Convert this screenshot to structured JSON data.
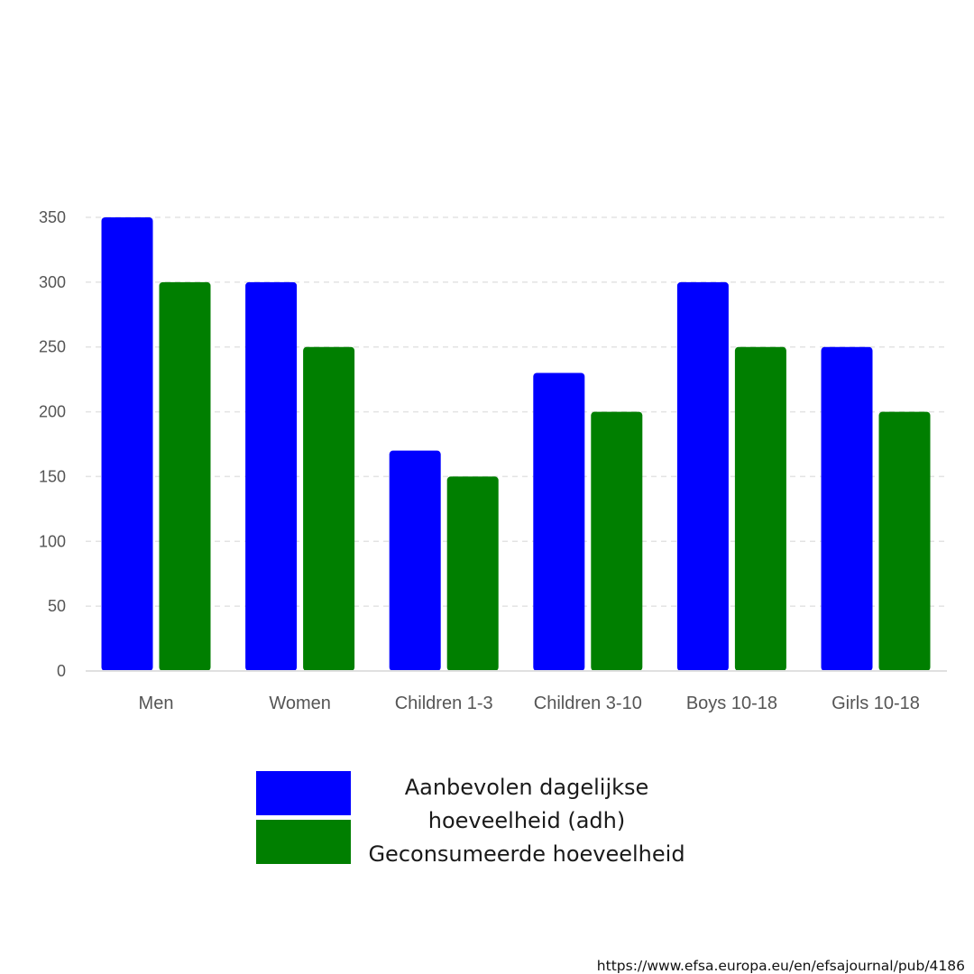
{
  "chart_data": {
    "type": "bar",
    "categories": [
      "Men",
      "Women",
      "Children 1-3",
      "Children 3-10",
      "Boys 10-18",
      "Girls 10-18"
    ],
    "series": [
      {
        "name": "Aanbevolen dagelijkse hoeveelheid (adh)",
        "color": "#0000ff",
        "values": [
          350,
          300,
          170,
          230,
          300,
          250
        ]
      },
      {
        "name": "Geconsumeerde hoeveelheid",
        "color": "#007f00",
        "values": [
          300,
          250,
          150,
          200,
          250,
          200
        ]
      }
    ],
    "yticks": [
      0,
      50,
      100,
      150,
      200,
      250,
      300,
      350
    ],
    "ylim": [
      0,
      350
    ],
    "grid": true,
    "gridStyle": "dashed",
    "legend_position": "bottom"
  },
  "legend": {
    "line1": "Aanbevolen dagelijkse",
    "line2": "hoeveelheid (adh)",
    "line3": "Geconsumeerde hoeveelheid"
  },
  "source": "https://www.efsa.europa.eu/en/efsajournal/pub/4186"
}
